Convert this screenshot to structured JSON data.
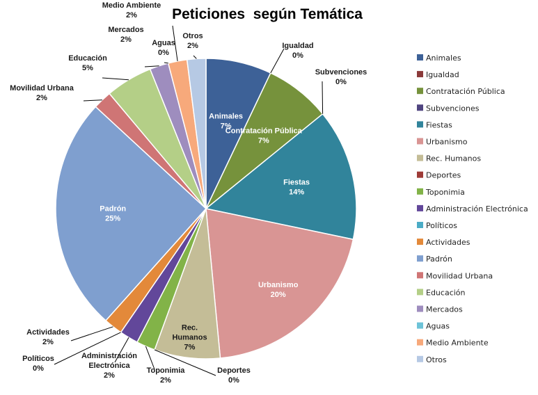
{
  "chart_data": {
    "type": "pie",
    "title": "Peticiones  según Temática",
    "legend_position": "right",
    "slices": [
      {
        "name": "Animales",
        "value": 7,
        "label": "7%",
        "color": "#3d6197"
      },
      {
        "name": "Igualdad",
        "value": 0,
        "label": "0%",
        "color": "#8b3a3a"
      },
      {
        "name": "Contratación Pública",
        "value": 7,
        "label": "7%",
        "color": "#76923c"
      },
      {
        "name": "Subvenciones",
        "value": 0,
        "label": "0%",
        "color": "#4f4480"
      },
      {
        "name": "Fiestas",
        "value": 14,
        "label": "14%",
        "color": "#31849b"
      },
      {
        "name": "Urbanismo",
        "value": 20,
        "label": "20%",
        "color": "#d99594"
      },
      {
        "name": "Rec. Humanos",
        "value": 7,
        "label": "7%",
        "color": "#c4bd97"
      },
      {
        "name": "Deportes",
        "value": 0,
        "label": "0%",
        "color": "#9e3b37"
      },
      {
        "name": "Toponimia",
        "value": 2,
        "label": "2%",
        "color": "#82b348"
      },
      {
        "name": "Administración Electrónica",
        "value": 2,
        "label": "2%",
        "color": "#62479a"
      },
      {
        "name": "Políticos",
        "value": 0,
        "label": "0%",
        "color": "#4bacc6"
      },
      {
        "name": "Actividades",
        "value": 2,
        "label": "2%",
        "color": "#e3893a"
      },
      {
        "name": "Padrón",
        "value": 25,
        "label": "25%",
        "color": "#7f9fcf"
      },
      {
        "name": "Movilidad Urbana",
        "value": 2,
        "label": "2%",
        "color": "#cf7575"
      },
      {
        "name": "Educación",
        "value": 5,
        "label": "5%",
        "color": "#b4cf87"
      },
      {
        "name": "Mercados",
        "value": 2,
        "label": "2%",
        "color": "#9e8dbe"
      },
      {
        "name": "Aguas",
        "value": 0,
        "label": "0%",
        "color": "#6dc3d8"
      },
      {
        "name": "Medio Ambiente",
        "value": 2,
        "label": "2%",
        "color": "#f7a97b"
      },
      {
        "name": "Otros",
        "value": 2,
        "label": "2%",
        "color": "#b6c9e4"
      }
    ]
  }
}
